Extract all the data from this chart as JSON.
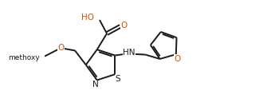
{
  "bg_color": "#ffffff",
  "line_color": "#1a1a1a",
  "atom_color": "#1a1a1a",
  "o_color": "#cc5500",
  "s_color": "#1a1a1a",
  "n_color": "#1a1a1a",
  "line_width": 1.4,
  "font_size": 7.5,
  "fig_width": 3.45,
  "fig_height": 1.38,
  "xlim": [
    0,
    10.5
  ],
  "ylim": [
    0,
    4.2
  ]
}
